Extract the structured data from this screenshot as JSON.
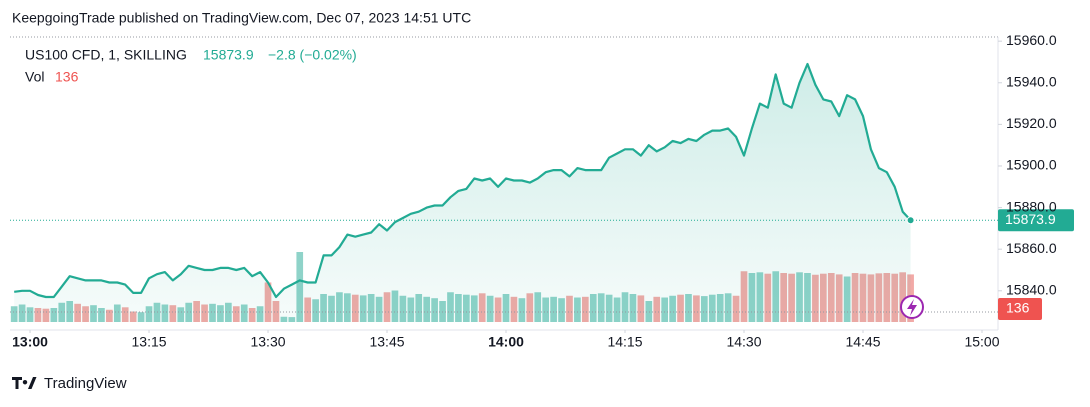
{
  "header": "KeepgoingTrade published on TradingView.com, Dec 07, 2023 14:51 UTC",
  "footer": "TradingView",
  "chart_data": {
    "type": "area",
    "symbol": "US100 CFD, 1, SKILLING",
    "change": "−2.8 (−0.02%)",
    "categories": [
      null,
      null,
      "13:00",
      null,
      null,
      null,
      null,
      null,
      null,
      null,
      null,
      null,
      null,
      null,
      null,
      null,
      null,
      "13:15",
      null,
      null,
      null,
      null,
      null,
      null,
      null,
      null,
      null,
      null,
      null,
      null,
      null,
      null,
      "13:30",
      null,
      null,
      null,
      null,
      null,
      null,
      null,
      null,
      null,
      null,
      null,
      null,
      null,
      null,
      "13:45",
      null,
      null,
      null,
      null,
      null,
      null,
      null,
      null,
      null,
      null,
      null,
      null,
      null,
      null,
      "14:00",
      null,
      null,
      null,
      null,
      null,
      null,
      null,
      null,
      null,
      null,
      null,
      null,
      null,
      null,
      "14:15",
      null,
      null,
      null,
      null,
      null,
      null,
      null,
      null,
      null,
      null,
      null,
      null,
      null,
      null,
      "14:30",
      null,
      null,
      null,
      null,
      null,
      null,
      null,
      null,
      null,
      null,
      null,
      null,
      null,
      null,
      "14:45",
      null,
      null,
      null,
      null,
      null,
      null,
      null,
      null,
      null,
      null,
      null,
      null,
      null,
      null,
      "15:00",
      null
    ],
    "series": [
      {
        "name": "US100 CFD, 1, SKILLING",
        "color": "#22ab94",
        "values": [
          15839.5,
          15840,
          15840,
          15838,
          15837,
          15837,
          15842,
          15847,
          15846,
          15845,
          15845,
          15845,
          15844,
          15844,
          15843,
          15839,
          15839,
          15846,
          15848,
          15849,
          15845,
          15848,
          15852,
          15851,
          15850,
          15850,
          15851,
          15851,
          15850,
          15851,
          15847,
          15849,
          15844,
          15837,
          15841,
          15843,
          15845,
          15844,
          15844,
          15857,
          15857,
          15861,
          15867,
          15866,
          15867,
          15868,
          15872,
          15869,
          15873,
          15875,
          15877,
          15878,
          15880,
          15881,
          15881,
          15885,
          15888,
          15889,
          15894,
          15893,
          15894,
          15890,
          15894,
          15893,
          15893,
          15892,
          15894,
          15897,
          15898,
          15898,
          15895,
          15899,
          15898,
          15898,
          15898,
          15904,
          15906,
          15908,
          15908,
          15905,
          15910,
          15907,
          15909,
          15912,
          15911,
          15913,
          15912,
          15915,
          15917,
          15917,
          15918,
          15914,
          15905,
          15918,
          15930,
          15928,
          15944,
          15930,
          15928,
          15940,
          15949,
          15939,
          15932,
          15931,
          15924,
          15934,
          15932,
          15924,
          15908,
          15899,
          15897,
          15890,
          15878,
          15873.9,
          null,
          null,
          null,
          null,
          null,
          null,
          null,
          null,
          null,
          null
        ]
      }
    ],
    "volume": {
      "name": "Vol",
      "up_color": "#8fd3c9",
      "down_color": "#f2a9a6",
      "label_color": "#ef5350",
      "values": [
        45,
        50,
        42,
        40,
        38,
        40,
        55,
        60,
        52,
        45,
        48,
        40,
        35,
        50,
        42,
        30,
        28,
        45,
        55,
        50,
        48,
        42,
        55,
        60,
        50,
        52,
        48,
        55,
        45,
        50,
        40,
        45,
        113,
        60,
        15,
        14,
        200,
        70,
        65,
        80,
        75,
        85,
        82,
        78,
        76,
        80,
        72,
        85,
        90,
        75,
        70,
        80,
        72,
        68,
        60,
        85,
        80,
        78,
        76,
        82,
        75,
        70,
        80,
        72,
        68,
        82,
        85,
        70,
        72,
        68,
        75,
        70,
        72,
        80,
        82,
        78,
        70,
        85,
        80,
        76,
        60,
        72,
        70,
        75,
        78,
        80,
        76,
        74,
        78,
        80,
        82,
        75,
        145,
        140,
        142,
        138,
        145,
        140,
        138,
        142,
        140,
        135,
        138,
        140,
        136,
        130,
        140,
        138,
        136,
        139,
        140,
        138,
        142,
        136,
        null,
        null,
        null,
        null,
        null,
        null,
        null,
        null,
        null,
        null
      ]
    },
    "ylim": [
      15825,
      15962
    ],
    "yticks": [
      {
        "value": 15840,
        "label": "15840.0"
      },
      {
        "value": 15860,
        "label": "15860.0"
      },
      {
        "value": 15880,
        "label": "15880.0"
      },
      {
        "value": 15900,
        "label": "15900.0"
      },
      {
        "value": 15920,
        "label": "15920.0"
      },
      {
        "value": 15940,
        "label": "15940.0"
      },
      {
        "value": 15960,
        "label": "15960.0"
      }
    ]
  }
}
